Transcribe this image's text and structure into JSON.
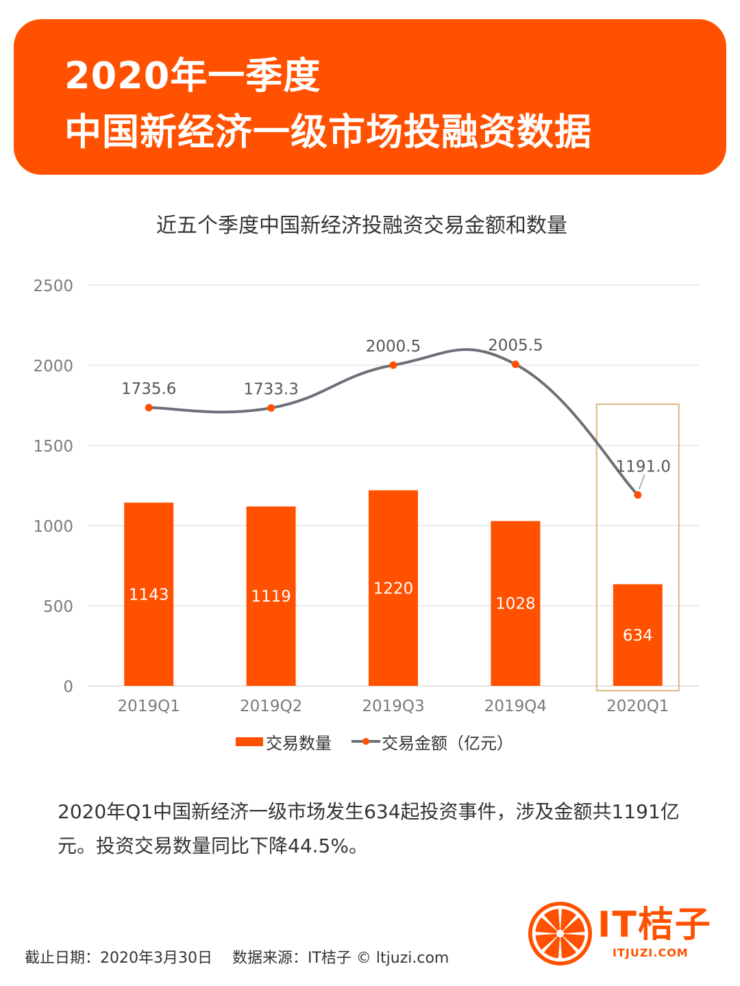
{
  "header": {
    "line1": "2020年一季度",
    "line2": "中国新经济一级市场投融资数据"
  },
  "chart_data": {
    "type": "bar+line",
    "title": "近五个季度中国新经济投融资交易金额和数量",
    "categories": [
      "2019Q1",
      "2019Q2",
      "2019Q3",
      "2019Q4",
      "2020Q1"
    ],
    "ylim": [
      0,
      2500
    ],
    "yticks": [
      0,
      500,
      1000,
      1500,
      2000,
      2500
    ],
    "grid": true,
    "legend_position": "bottom",
    "highlight_category": "2020Q1",
    "series": [
      {
        "name": "交易数量",
        "type": "bar",
        "color": "#FF5100",
        "values": [
          1143,
          1119,
          1220,
          1028,
          634
        ],
        "labels": [
          "1143",
          "1119",
          "1220",
          "1028",
          "634"
        ]
      },
      {
        "name": "交易金额（亿元）",
        "type": "line",
        "color": "#6E6E78",
        "marker_color": "#FF5100",
        "values": [
          1735.6,
          1733.3,
          2000.5,
          2005.5,
          1191.0
        ],
        "labels": [
          "1735.6",
          "1733.3",
          "2000.5",
          "2005.5",
          "1191.0"
        ]
      }
    ]
  },
  "summary": {
    "text": "2020年Q1中国新经济一级市场发生634起投资事件，涉及金额共1191亿元。投资交易数量同比下降44.5%。"
  },
  "footer": {
    "date": "截止日期：2020年3月30日",
    "source": "数据来源：IT桔子 © ltjuzi.com"
  },
  "logo": {
    "name": "IT桔子",
    "url": "ITJUZI.COM",
    "icon": "orange-slice-icon"
  },
  "colors": {
    "brand": "#FF5100",
    "line": "#6E6E78",
    "highlight_box": "#D9B77E",
    "grid": "#E6E6E6",
    "axis_text": "#7A7A7A"
  }
}
